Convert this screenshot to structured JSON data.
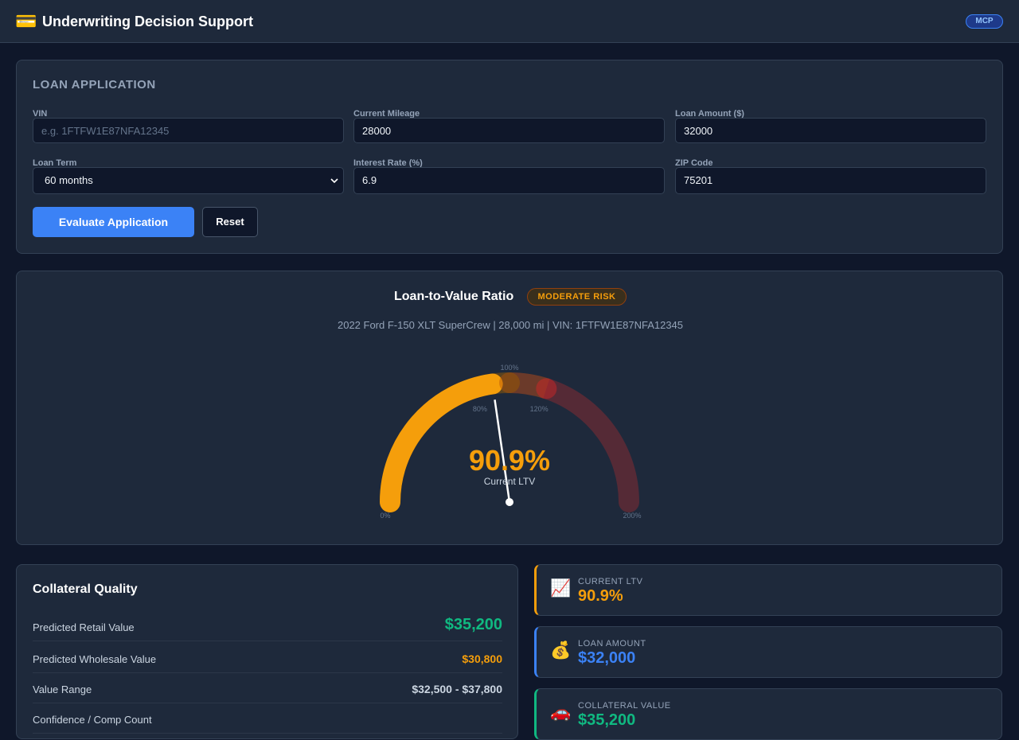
{
  "header": {
    "icon": "💳",
    "title": "Underwriting Decision Support",
    "badge": "MCP"
  },
  "application": {
    "title": "LOAN APPLICATION",
    "fields": [
      {
        "label": "VIN",
        "placeholder": "e.g. 1FTFW1E87NFA12345"
      },
      {
        "label": "Current Mileage",
        "value": "28000"
      },
      {
        "label": "Loan Amount ($)",
        "value": "32000"
      },
      {
        "label": "Loan Term",
        "value": "60 months"
      },
      {
        "label": "Interest Rate (%)",
        "value": "6.9"
      },
      {
        "label": "ZIP Code",
        "value": "75201"
      }
    ],
    "buttons": [
      "Evaluate Application",
      "Reset"
    ]
  },
  "ltv_gauge": {
    "title": "Loan-to-Value Ratio",
    "badge": "MODERATE RISK",
    "subtitle": "2022 Ford F-150 XLT SuperCrew | 28,000 mi | VIN: 1FTFW1E87NFA12345",
    "value": 90.9,
    "value_label": "90.9%",
    "caption": "Current LTV",
    "min": 0,
    "max": 200,
    "ticks": [
      {
        "value": 0,
        "label": "0%"
      },
      {
        "value": 80,
        "label": "80%"
      },
      {
        "value": 100,
        "label": "100%"
      },
      {
        "value": 120,
        "label": "120%"
      },
      {
        "value": 200,
        "label": "200%"
      }
    ]
  },
  "collateral": {
    "title": "Collateral Quality",
    "rows": [
      {
        "label": "Predicted Retail Value",
        "value": "$35,200"
      },
      {
        "label": "Predicted Wholesale Value",
        "value": "$30,800"
      },
      {
        "label": "Value Range",
        "value": "$32,500 - $37,800"
      },
      {
        "label": "Confidence / Comp Count"
      }
    ]
  },
  "metrics": [
    {
      "icon": "📈",
      "label": "CURRENT LTV",
      "value": "90.9%"
    },
    {
      "icon": "💰",
      "label": "LOAN AMOUNT",
      "value": "$32,000"
    },
    {
      "icon": "🚗",
      "label": "COLLATERAL VALUE",
      "value": "$35,200"
    }
  ]
}
